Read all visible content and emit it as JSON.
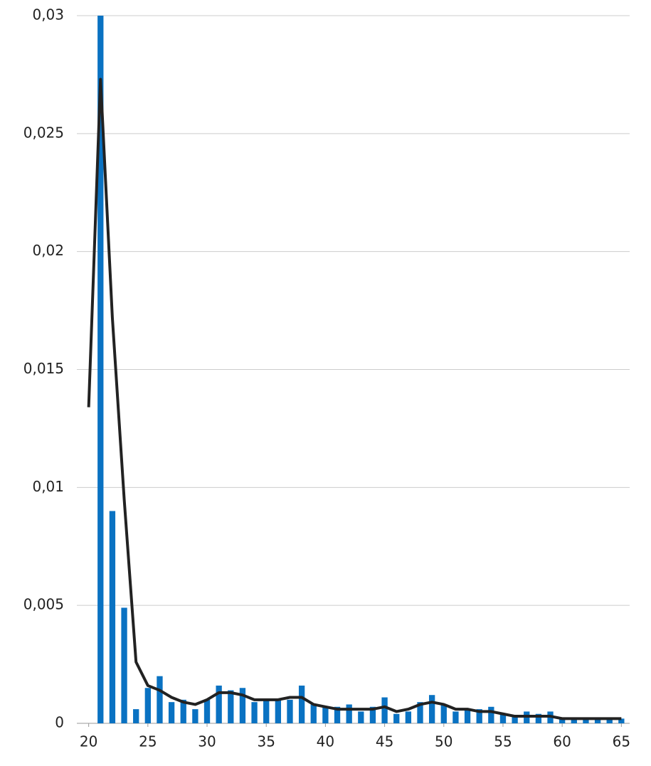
{
  "chart_data": {
    "type": "bar",
    "x": [
      20,
      21,
      22,
      23,
      24,
      25,
      26,
      27,
      28,
      29,
      30,
      31,
      32,
      33,
      34,
      35,
      36,
      37,
      38,
      39,
      40,
      41,
      42,
      43,
      44,
      45,
      46,
      47,
      48,
      49,
      50,
      51,
      52,
      53,
      54,
      55,
      56,
      57,
      58,
      59,
      60,
      61,
      62,
      63,
      64,
      65
    ],
    "series": [
      {
        "type": "bar",
        "color": "#0a72c2",
        "values": [
          null,
          0.03,
          0.009,
          0.0049,
          0.0006,
          0.0015,
          0.002,
          0.0009,
          0.001,
          0.0006,
          0.001,
          0.0016,
          0.0014,
          0.0015,
          0.0009,
          0.001,
          0.001,
          0.001,
          0.0016,
          0.0008,
          0.0007,
          0.0007,
          0.0008,
          0.0005,
          0.0007,
          0.0011,
          0.0004,
          0.0005,
          0.0009,
          0.0012,
          0.0008,
          0.0005,
          0.0006,
          0.0006,
          0.0007,
          0.0004,
          0.0003,
          0.0005,
          0.0004,
          0.0005,
          0.0002,
          0.0002,
          0.0002,
          0.0002,
          0.0002,
          0.0002
        ]
      },
      {
        "type": "line",
        "color": "#222222",
        "values": [
          0.0134,
          0.0273,
          0.0172,
          0.0095,
          0.0026,
          0.0016,
          0.0014,
          0.0011,
          0.0009,
          0.0008,
          0.001,
          0.0013,
          0.0013,
          0.0012,
          0.001,
          0.001,
          0.001,
          0.0011,
          0.0011,
          0.0008,
          0.0007,
          0.0006,
          0.0006,
          0.0006,
          0.0006,
          0.0007,
          0.0005,
          0.0006,
          0.0008,
          0.0009,
          0.0008,
          0.0006,
          0.0006,
          0.0005,
          0.0005,
          0.0004,
          0.0003,
          0.0003,
          0.0003,
          0.0003,
          0.0002,
          0.0002,
          0.0002,
          0.0002,
          0.0002,
          0.0002
        ]
      }
    ],
    "xlim": [
      19,
      65.7
    ],
    "xticks": [
      20,
      25,
      30,
      35,
      40,
      45,
      50,
      55,
      60,
      65
    ],
    "ylim": [
      0,
      0.03
    ],
    "yticks": [
      0,
      {
        "value": 0.005,
        "label": "0,005"
      },
      {
        "value": 0.01,
        "label": "0,01"
      },
      {
        "value": 0.015,
        "label": "0,015"
      },
      {
        "value": 0.02,
        "label": "0,02"
      },
      {
        "value": 0.025,
        "label": "0,025"
      },
      {
        "value": 0.03,
        "label": "0,03"
      }
    ],
    "grid": true
  }
}
